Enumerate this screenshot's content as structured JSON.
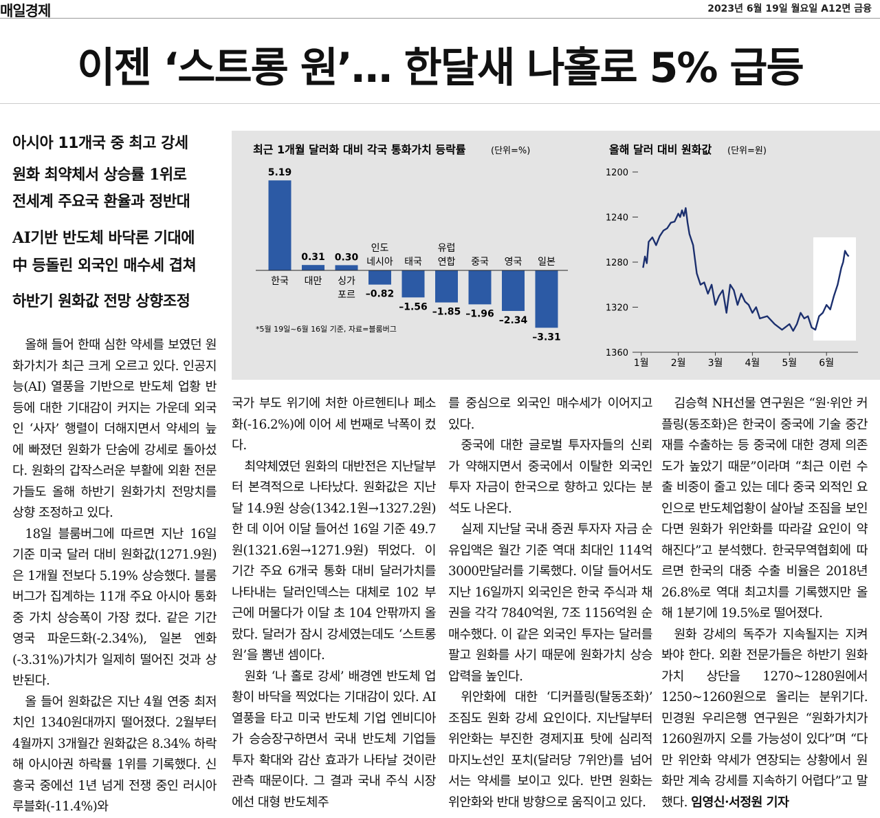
{
  "header": {
    "masthead": "매일경제",
    "dateline": "2023년 6월 19일 월요일 A12면 금융"
  },
  "headline": "이젠 ‘스트롱 원’… 한달새 나홀로 5% 급등",
  "subheads": [
    "아시아 11개국 중 최고 강세",
    "원화 최약체서 상승률 1위로",
    "전세계 주요국 환율과 정반대",
    "AI기반 반도체 바닥론 기대에",
    "中 등돌린 외국인 매수세 겹쳐",
    "하반기 원화값 전망 상향조정"
  ],
  "chart_data": [
    {
      "type": "bar",
      "title": "최근 1개월 달러화 대비 각국 통화가치 등락률",
      "unit": "(단위=%)",
      "categories": [
        "한국",
        "대만",
        "싱가\n포르",
        "인도\n네시아",
        "태국",
        "유럽\n연합",
        "중국",
        "영국",
        "일본"
      ],
      "values": [
        5.19,
        0.31,
        0.3,
        -0.82,
        -1.56,
        -1.85,
        -1.96,
        -2.34,
        -3.31
      ],
      "value_labels": [
        "5.19",
        "0.31",
        "0.30",
        "–0.82",
        "–1.56",
        "–1.85",
        "–1.96",
        "–2.34",
        "–3.31"
      ],
      "color": "#2c5aa5",
      "note": "*5월 19일~6월 16일 기준, 자료=블룸버그"
    },
    {
      "type": "line",
      "title": "올해 달러 대비 원화값",
      "unit": "(단위=원)",
      "x": [
        1.05,
        1.1,
        1.15,
        1.2,
        1.3,
        1.4,
        1.5,
        1.6,
        1.7,
        1.8,
        1.9,
        2.0,
        2.05,
        2.1,
        2.15,
        2.2,
        2.25,
        2.3,
        2.4,
        2.5,
        2.6,
        2.7,
        2.8,
        2.9,
        3.0,
        3.1,
        3.2,
        3.3,
        3.4,
        3.5,
        3.6,
        3.7,
        3.8,
        3.9,
        4.0,
        4.1,
        4.2,
        4.4,
        4.6,
        4.8,
        5.0,
        5.1,
        5.2,
        5.3,
        5.4,
        5.5,
        5.6,
        5.7,
        5.8,
        5.9,
        6.0,
        6.1,
        6.2,
        6.3,
        6.4,
        6.45,
        6.5,
        6.55,
        6.6
      ],
      "values": [
        1285,
        1275,
        1281,
        1262,
        1258,
        1265,
        1257,
        1252,
        1250,
        1245,
        1244,
        1237,
        1240,
        1234,
        1239,
        1232,
        1245,
        1255,
        1265,
        1290,
        1300,
        1298,
        1308,
        1300,
        1318,
        1310,
        1305,
        1325,
        1300,
        1305,
        1318,
        1308,
        1315,
        1318,
        1325,
        1320,
        1330,
        1328,
        1335,
        1340,
        1335,
        1341,
        1335,
        1325,
        1330,
        1328,
        1338,
        1340,
        1328,
        1325,
        1318,
        1322,
        1310,
        1300,
        1285,
        1280,
        1270,
        1273,
        1275
      ],
      "color": "#1b2f6e",
      "xlim": [
        0.95,
        6.85
      ],
      "xticks": [
        {
          "value": 1,
          "label": "1월"
        },
        {
          "value": 2,
          "label": "2월"
        },
        {
          "value": 3,
          "label": "3월"
        },
        {
          "value": 4,
          "label": "4월"
        },
        {
          "value": 5,
          "label": "5월"
        },
        {
          "value": 6,
          "label": "6월"
        }
      ],
      "ylim": [
        1200,
        1360
      ],
      "y_inverted": true,
      "yticks": [
        1200,
        1240,
        1280,
        1320,
        1360
      ]
    }
  ],
  "body": {
    "columns": [
      {
        "paragraphs": [
          "올해 들어 한때 심한 약세를 보였던 원화가치가 최근 크게 오르고 있다. 인공지능(AI) 열풍을 기반으로 반도체 업황 반등에 대한 기대감이 커지는 가운데 외국인 ‘사자’ 행렬이 더해지면서 약세의 늪에 빠졌던 원화가 단숨에 강세로 돌아섰다. 원화의 갑작스러운 부활에 외환 전문가들도 올해 하반기 원화가치 전망치를 상향 조정하고 있다.",
          "18일 블룸버그에 따르면 지난 16일 기준 미국 달러 대비 원화값(1271.9원)은 1개월 전보다 5.19% 상승했다. 블룸버그가 집계하는 11개 주요 아시아 통화 중 가치 상승폭이 가장 컸다. 같은 기간 영국 파운드화(-2.34%), 일본 엔화(-3.31%)가치가 일제히 떨어진 것과 상반된다.",
          "올 들어 원화값은 지난 4월 연중 최저치인 1340원대까지 떨어졌다. 2월부터 4월까지 3개월간 원화값은 8.34% 하락해 아시아권 하락률 1위를 기록했다. 신흥국 중에선 1년 넘게 전쟁 중인 러시아 루블화(-11.4%)와"
        ]
      },
      {
        "paragraphs": [
          "국가 부도 위기에 처한 아르헨티나 페소화(-16.2%)에 이어 세 번째로 낙폭이 컸다.",
          "최약체였던 원화의 대반전은 지난달부터 본격적으로 나타났다. 원화값은 지난달 14.9원 상승(1342.1원→1327.2원)한 데 이어 이달 들어선 16일 기준 49.7원(1321.6원→1271.9원) 뛰었다. 이 기간 주요 6개국 통화 대비 달러가치를 나타내는 달러인덱스는 대체로 102 부근에 머물다가 이달 초 104 안팎까지 올랐다. 달러가 잠시 강세였는데도 ‘스트롱 원’을 뽐낸 셈이다.",
          "원화 ‘나 홀로 강세’ 배경엔 반도체 업황이 바닥을 찍었다는 기대감이 있다. AI 열풍을 타고 미국 반도체 기업 엔비디아가 승승장구하면서 국내 반도체 기업들 투자 확대와 감산 효과가 나타날 것이란 관측 때문이다. 그 결과 국내 주식 시장에선 대형 반도체주"
        ]
      },
      {
        "paragraphs": [
          "를 중심으로 외국인 매수세가 이어지고 있다.",
          "중국에 대한 글로벌 투자자들의 신뢰가 약해지면서 중국에서 이탈한 외국인 투자 자금이 한국으로 향하고 있다는 분석도 나온다.",
          "실제 지난달 국내 증권 투자자 자금 순유입액은 월간 기준 역대 최대인 114억3000만달러를 기록했다. 이달 들어서도 지난 16일까지 외국인은 한국 주식과 채권을 각각 7840억원, 7조 1156억원 순매수했다. 이 같은 외국인 투자는 달러를 팔고 원화를 사기 때문에 원화가치 상승 압력을 높인다.",
          "위안화에 대한 ‘디커플링(탈동조화)’ 조짐도 원화 강세 요인이다. 지난달부터 위안화는 부진한 경제지표 탓에 심리적 마지노선인 포치(달러당 7위안)를 넘어서는 약세를 보이고 있다. 반면 원화는 위안화와 반대 방향으로 움직이고 있다."
        ]
      },
      {
        "paragraphs": [
          "김승혁 NH선물 연구원은 “원·위안 커플링(동조화)은 한국이 중국에 기술 중간재를 수출하는 등 중국에 대한 경제 의존도가 높았기 때문”이라며 “최근 이런 수출 비중이 줄고 있는 데다 중국 외적인 요인으로 반도체업황이 살아날 조짐을 보인다면 원화가 위안화를 따라갈 요인이 약해진다”고 분석했다. 한국무역협회에 따르면 한국의 대중 수출 비율은 2018년 26.8%로 역대 최고치를 기록했지만 올해 1분기에 19.5%로 떨어졌다.",
          "원화 강세의 독주가 지속될지는 지켜봐야 한다. 외환 전문가들은 하반기 원화가치 상단을 1270~1280원에서 1250~1260원으로 올리는 분위기다. 민경원 우리은행 연구원은 “원화가치가 1260원까지 오를 가능성이 있다”며 “다만 위안화 약세가 연장되는 상황에서 원화만 계속 강세를 지속하기 어렵다”고 말했다."
        ]
      }
    ],
    "byline": "임영신·서정원 기자"
  }
}
